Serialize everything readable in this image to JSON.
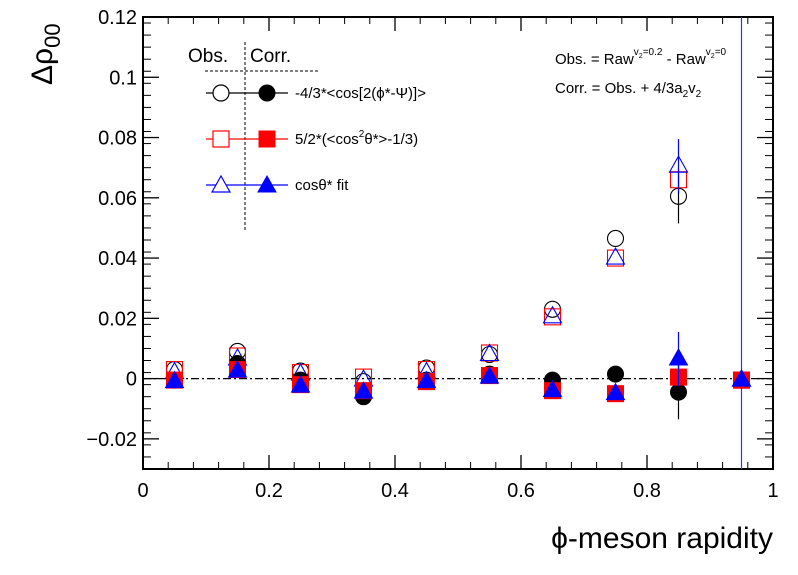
{
  "chart_data": {
    "type": "scatter",
    "title": "",
    "xlabel": "ϕ-meson rapidity",
    "ylabel_main": "Δρ",
    "ylabel_sub": "00",
    "xlim": [
      0,
      1
    ],
    "ylim": [
      -0.03,
      0.12
    ],
    "xticks": [
      0,
      0.2,
      0.4,
      0.6,
      0.8,
      1
    ],
    "xtick_labels": [
      "0",
      "0.2",
      "0.4",
      "0.6",
      "0.8",
      "1"
    ],
    "yticks": [
      -0.02,
      0,
      0.02,
      0.04,
      0.06,
      0.08,
      0.1,
      0.12
    ],
    "ytick_labels": [
      "−0.02",
      "0",
      "0.02",
      "0.04",
      "0.06",
      "0.08",
      "0.1",
      "0.12"
    ],
    "x": [
      0.05,
      0.15,
      0.25,
      0.35,
      0.45,
      0.55,
      0.65,
      0.75,
      0.85,
      0.95
    ],
    "reference_line": {
      "y": 0,
      "style": "dash-dot"
    },
    "vertical_line": {
      "x": 0.95,
      "color": "#3333ff"
    },
    "legend": {
      "placement": "top-left",
      "header_obs": "Obs.",
      "header_corr": "Corr.",
      "entries": [
        {
          "label": "-4/3*<cos[2(ϕ*-Ψ)]>",
          "color": "#000000",
          "marker": "circle"
        },
        {
          "label_pre": "5/2*(<cos",
          "label_sup": "2",
          "label_post": "θ*>-1/3)",
          "color": "#ff0000",
          "marker": "square"
        },
        {
          "label": "cosθ* fit",
          "color": "#0000ff",
          "marker": "triangle"
        }
      ]
    },
    "notes": {
      "line1_pre": "Obs. = Raw",
      "line1_sup1": "v",
      "line1_subsup1": "2",
      "line1_sup1_tail": "=0.2",
      "line1_mid": " - Raw",
      "line1_sup2": "v",
      "line1_subsup2": "2",
      "line1_sup2_tail": "=0",
      "line2_pre": "Corr. = Obs. + 4/3a",
      "line2_sub1": "2",
      "line2_mid": "v",
      "line2_sub2": "2"
    },
    "series": [
      {
        "name": "-4/3*<cos[2(ϕ*-Ψ)]> Obs.",
        "marker": "circle",
        "filled": false,
        "color": "#000000",
        "values": [
          0.003,
          0.009,
          0.0025,
          -0.001,
          0.0035,
          0.008,
          0.023,
          0.0465,
          0.0605,
          -0.0005
        ],
        "errors": [
          0,
          0,
          0,
          0,
          0,
          0,
          0,
          0,
          0.009,
          0
        ]
      },
      {
        "name": "-4/3*<cos[2(ϕ*-Ψ)]> Corr.",
        "marker": "circle",
        "filled": true,
        "color": "#000000",
        "values": [
          -0.0005,
          0.005,
          -0.0005,
          -0.006,
          -0.0005,
          0.0015,
          -0.0005,
          0.0015,
          -0.0045,
          -0.0005
        ],
        "errors": [
          0,
          0,
          0,
          0,
          0,
          0,
          0,
          0,
          0.009,
          0
        ]
      },
      {
        "name": "5/2*(<cos²θ*>-1/3) Obs.",
        "marker": "square",
        "filled": false,
        "color": "#ff0000",
        "values": [
          0.003,
          0.0075,
          0.002,
          0.0005,
          0.003,
          0.0085,
          0.0205,
          0.04,
          0.066,
          -0.0005
        ],
        "errors": [
          0,
          0,
          0,
          0,
          0,
          0,
          0,
          0,
          0,
          0
        ]
      },
      {
        "name": "5/2*(<cos²θ*>-1/3) Corr.",
        "marker": "square",
        "filled": true,
        "color": "#ff0000",
        "values": [
          -0.0005,
          0.003,
          -0.002,
          -0.004,
          -0.001,
          0.001,
          -0.004,
          -0.005,
          0.0005,
          -0.0005
        ],
        "errors": [
          0,
          0,
          0,
          0,
          0,
          0,
          0,
          0,
          0,
          0
        ]
      },
      {
        "name": "cosθ* fit Obs.",
        "marker": "triangle",
        "filled": false,
        "color": "#0000ff",
        "values": [
          0.002,
          0.0065,
          0.0015,
          -0.0005,
          0.002,
          0.008,
          0.0205,
          0.04,
          0.0705,
          -0.0005
        ],
        "errors": [
          0,
          0,
          0,
          0,
          0,
          0,
          0,
          0,
          0.009,
          0
        ]
      },
      {
        "name": "cosθ* fit Corr.",
        "marker": "triangle",
        "filled": true,
        "color": "#0000ff",
        "values": [
          -0.001,
          0.0025,
          -0.0025,
          -0.0045,
          -0.001,
          0.0005,
          -0.004,
          -0.005,
          0.0065,
          -0.0005
        ],
        "errors": [
          0,
          0,
          0,
          0,
          0,
          0,
          0,
          0,
          0.009,
          0
        ]
      }
    ]
  }
}
